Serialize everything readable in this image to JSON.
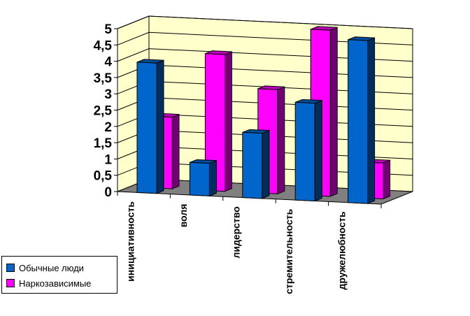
{
  "chart_data": {
    "type": "bar",
    "three_d": true,
    "categories": [
      "инициативность",
      "воля",
      "лидерство",
      "стремительность",
      "дружелюбность"
    ],
    "series": [
      {
        "name": "Обычные люди",
        "values": [
          4.0,
          1.0,
          2.0,
          3.0,
          5.0
        ],
        "color": "#0066CC"
      },
      {
        "name": "Наркозависимые",
        "values": [
          2.2,
          4.2,
          3.2,
          5.1,
          1.1
        ],
        "color": "#FF00FF"
      }
    ],
    "y_ticks": [
      "0",
      "0,5",
      "1",
      "1,5",
      "2",
      "2,5",
      "3",
      "3,5",
      "4",
      "4,5",
      "5"
    ],
    "ylim": [
      0,
      5
    ],
    "grid": true,
    "legend_position": "bottom-left",
    "back_wall_color": "#FFFFCC",
    "floor_color": "#808080"
  }
}
